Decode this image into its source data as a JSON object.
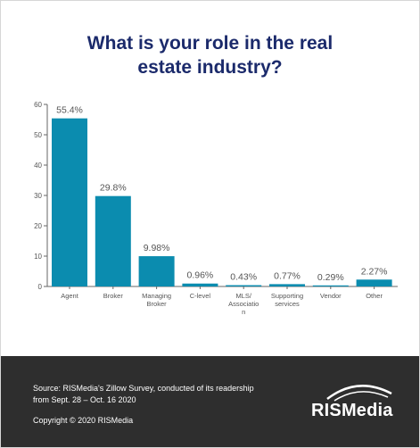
{
  "page": {
    "title_line1": "What is your role in the real",
    "title_line2": "estate industry?"
  },
  "footer": {
    "source_line1": "Source: RISMedia's Zillow Survey, conducted of its readership",
    "source_line2": "from Sept. 28 – Oct. 16 2020",
    "copyright": "Copyright © 2020 RISMedia",
    "brand": "RISMedia"
  },
  "colors": {
    "bar": "#0b8caf",
    "title": "#1b2a6b",
    "footer_bg": "#2e2e2e"
  },
  "chart_data": {
    "type": "bar",
    "title": "What is your role in the real estate industry?",
    "categories": [
      [
        "Agent"
      ],
      [
        "Broker"
      ],
      [
        "Managing",
        "Broker"
      ],
      [
        "C-level"
      ],
      [
        "MLS/",
        "Associatio",
        "n"
      ],
      [
        "Supporting",
        "services"
      ],
      [
        "Vendor"
      ],
      [
        "Other"
      ]
    ],
    "values": [
      55.4,
      29.8,
      9.98,
      0.96,
      0.43,
      0.77,
      0.29,
      2.27
    ],
    "value_labels": [
      "55.4%",
      "29.8%",
      "9.98%",
      "0.96%",
      "0.43%",
      "0.77%",
      "0.29%",
      "2.27%"
    ],
    "ylim": [
      0,
      60
    ],
    "yticks": [
      0,
      10,
      20,
      30,
      40,
      50,
      60
    ],
    "grid": false,
    "legend": "none"
  }
}
